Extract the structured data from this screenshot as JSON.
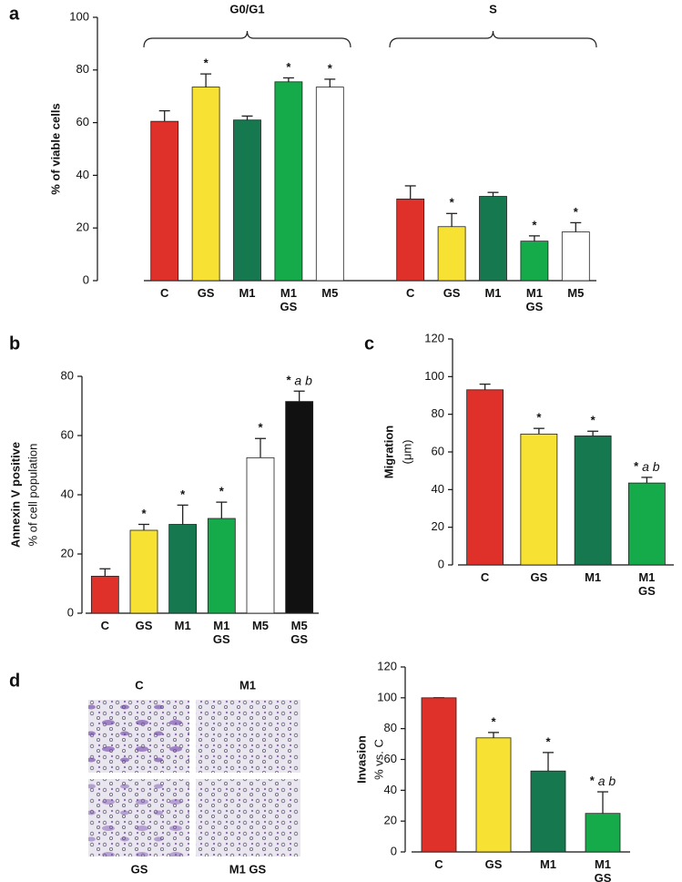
{
  "panel_labels": [
    "a",
    "b",
    "c",
    "d"
  ],
  "micrographs": [
    "C",
    "M1",
    "GS",
    "M1 GS"
  ],
  "chart_data": [
    {
      "type": "bar",
      "ylabel": "% of viable cells",
      "categories": [
        "C",
        "GS",
        "M1",
        "M1 GS",
        "M5"
      ],
      "colors": [
        "#e0302a",
        "#f7e132",
        "#16784f",
        "#16ab4a",
        "#ffffff"
      ],
      "series": [
        {
          "name": "G0/G1",
          "values": [
            60.5,
            73.5,
            61,
            75.5,
            73.5
          ],
          "errors": [
            4,
            5,
            1.5,
            1.5,
            3
          ],
          "markers": [
            null,
            "*",
            null,
            "*",
            "*"
          ]
        },
        {
          "name": "S",
          "values": [
            31,
            20.5,
            32,
            15,
            18.5
          ],
          "errors": [
            5,
            5,
            1.5,
            2,
            3.5
          ],
          "markers": [
            null,
            "*",
            null,
            "*",
            "*"
          ]
        }
      ],
      "ylim": [
        0,
        100
      ],
      "yticks": [
        0,
        20,
        40,
        60,
        80,
        100
      ]
    },
    {
      "type": "bar",
      "ylabel": "Annexin V positive",
      "ylabel_sub": "% of cell population",
      "categories": [
        "C",
        "GS",
        "M1",
        "M1 GS",
        "M5",
        "M5 GS"
      ],
      "colors": [
        "#e0302a",
        "#f7e132",
        "#16784f",
        "#16ab4a",
        "#ffffff",
        "#111111"
      ],
      "values": [
        12.5,
        28,
        30,
        32,
        52.5,
        71.5
      ],
      "errors": [
        2.5,
        2,
        6.5,
        5.5,
        6.5,
        3.5
      ],
      "markers": [
        null,
        "*",
        "*",
        "*",
        "*",
        "* a b"
      ],
      "ylim": [
        0,
        80
      ],
      "yticks": [
        0,
        20,
        40,
        60,
        80
      ]
    },
    {
      "type": "bar",
      "ylabel": "Migration",
      "ylabel_sub": "(μm)",
      "categories": [
        "C",
        "GS",
        "M1",
        "M1 GS"
      ],
      "colors": [
        "#e0302a",
        "#f7e132",
        "#16784f",
        "#16ab4a"
      ],
      "values": [
        93,
        69.5,
        68.5,
        43.5
      ],
      "errors": [
        3,
        3,
        2.5,
        3
      ],
      "markers": [
        null,
        "*",
        "*",
        "* a b"
      ],
      "ylim": [
        0,
        120
      ],
      "yticks": [
        0,
        20,
        40,
        60,
        80,
        100,
        120
      ]
    },
    {
      "type": "bar",
      "ylabel": "Invasion",
      "ylabel_sub": "% vs. C",
      "categories": [
        "C",
        "GS",
        "M1",
        "M1 GS"
      ],
      "colors": [
        "#e0302a",
        "#f7e132",
        "#16784f",
        "#16ab4a"
      ],
      "values": [
        100,
        74,
        52.5,
        25
      ],
      "errors": [
        0,
        3.5,
        12,
        14
      ],
      "markers": [
        null,
        "*",
        "*",
        "* a b"
      ],
      "ylim": [
        0,
        120
      ],
      "yticks": [
        0,
        20,
        40,
        60,
        80,
        100,
        120
      ]
    }
  ]
}
